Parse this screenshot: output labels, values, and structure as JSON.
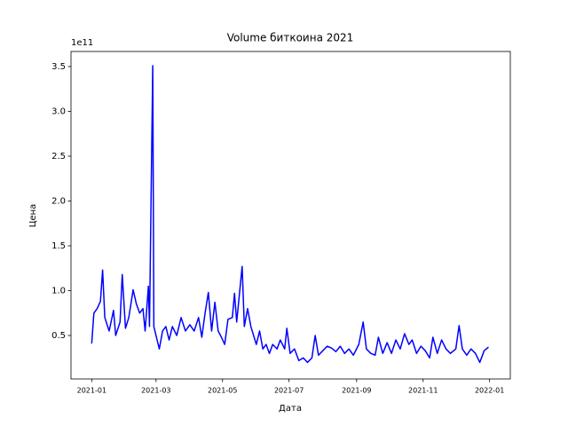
{
  "chart_data": {
    "type": "line",
    "title": "Volume биткоина 2021",
    "x_label": "Дата",
    "y_label": "Цена",
    "y_offset_label": "1e11",
    "x": [
      "2021-01-01",
      "2021-01-03",
      "2021-01-06",
      "2021-01-09",
      "2021-01-11",
      "2021-01-13",
      "2021-01-17",
      "2021-01-21",
      "2021-01-23",
      "2021-01-27",
      "2021-01-29",
      "2021-02-01",
      "2021-02-04",
      "2021-02-08",
      "2021-02-11",
      "2021-02-14",
      "2021-02-17",
      "2021-02-19",
      "2021-02-22",
      "2021-02-23",
      "2021-02-26",
      "2021-02-27",
      "2021-03-01",
      "2021-03-04",
      "2021-03-07",
      "2021-03-10",
      "2021-03-13",
      "2021-03-16",
      "2021-03-20",
      "2021-03-24",
      "2021-03-28",
      "2021-04-01",
      "2021-04-05",
      "2021-04-09",
      "2021-04-12",
      "2021-04-15",
      "2021-04-18",
      "2021-04-21",
      "2021-04-24",
      "2021-04-27",
      "2021-04-30",
      "2021-05-03",
      "2021-05-06",
      "2021-05-10",
      "2021-05-12",
      "2021-05-14",
      "2021-05-19",
      "2021-05-21",
      "2021-05-24",
      "2021-05-27",
      "2021-06-01",
      "2021-06-04",
      "2021-06-07",
      "2021-06-10",
      "2021-06-13",
      "2021-06-16",
      "2021-06-20",
      "2021-06-23",
      "2021-06-27",
      "2021-06-29",
      "2021-07-02",
      "2021-07-06",
      "2021-07-10",
      "2021-07-14",
      "2021-07-18",
      "2021-07-22",
      "2021-07-25",
      "2021-07-28",
      "2021-08-01",
      "2021-08-05",
      "2021-08-09",
      "2021-08-13",
      "2021-08-17",
      "2021-08-21",
      "2021-08-25",
      "2021-08-29",
      "2021-09-03",
      "2021-09-07",
      "2021-09-10",
      "2021-09-14",
      "2021-09-18",
      "2021-09-21",
      "2021-09-25",
      "2021-09-29",
      "2021-10-03",
      "2021-10-07",
      "2021-10-11",
      "2021-10-15",
      "2021-10-19",
      "2021-10-22",
      "2021-10-26",
      "2021-10-30",
      "2021-11-03",
      "2021-11-07",
      "2021-11-10",
      "2021-11-14",
      "2021-11-18",
      "2021-11-22",
      "2021-11-26",
      "2021-12-01",
      "2021-12-04",
      "2021-12-07",
      "2021-12-11",
      "2021-12-15",
      "2021-12-19",
      "2021-12-23",
      "2021-12-27",
      "2021-12-31"
    ],
    "series": [
      {
        "color": "#0000ff",
        "values": [
          0.41,
          0.75,
          0.8,
          0.88,
          1.23,
          0.7,
          0.55,
          0.78,
          0.5,
          0.65,
          1.18,
          0.58,
          0.7,
          1.01,
          0.85,
          0.75,
          0.8,
          0.55,
          1.05,
          0.6,
          3.51,
          0.6,
          0.5,
          0.35,
          0.55,
          0.6,
          0.45,
          0.6,
          0.5,
          0.7,
          0.55,
          0.62,
          0.55,
          0.7,
          0.48,
          0.75,
          0.98,
          0.55,
          0.87,
          0.55,
          0.48,
          0.4,
          0.68,
          0.7,
          0.97,
          0.65,
          1.27,
          0.6,
          0.8,
          0.6,
          0.4,
          0.55,
          0.35,
          0.4,
          0.3,
          0.4,
          0.35,
          0.45,
          0.35,
          0.58,
          0.3,
          0.35,
          0.22,
          0.25,
          0.2,
          0.25,
          0.5,
          0.28,
          0.33,
          0.38,
          0.36,
          0.32,
          0.38,
          0.3,
          0.35,
          0.28,
          0.4,
          0.65,
          0.35,
          0.3,
          0.28,
          0.48,
          0.3,
          0.42,
          0.3,
          0.45,
          0.35,
          0.52,
          0.4,
          0.45,
          0.3,
          0.38,
          0.33,
          0.25,
          0.48,
          0.3,
          0.45,
          0.35,
          0.3,
          0.35,
          0.61,
          0.35,
          0.28,
          0.35,
          0.3,
          0.2,
          0.33,
          0.37
        ]
      }
    ],
    "xlim": [
      "2020-12-13",
      "2022-01-20"
    ],
    "xticks": [
      {
        "value": "2021-01-01",
        "label": "2021-01"
      },
      {
        "value": "2021-03-01",
        "label": "2021-03"
      },
      {
        "value": "2021-05-01",
        "label": "2021-05"
      },
      {
        "value": "2021-07-01",
        "label": "2021-07"
      },
      {
        "value": "2021-09-01",
        "label": "2021-09"
      },
      {
        "value": "2021-11-01",
        "label": "2021-11"
      },
      {
        "value": "2022-01-01",
        "label": "2022-01"
      }
    ],
    "ylim": [
      0.015,
      3.668
    ],
    "yticks": [
      0.5,
      {
        "value": 1,
        "label": "1.0"
      },
      1.5,
      {
        "value": 2,
        "label": "2.0"
      },
      2.5,
      {
        "value": 3,
        "label": "3.0"
      },
      3.5
    ]
  }
}
